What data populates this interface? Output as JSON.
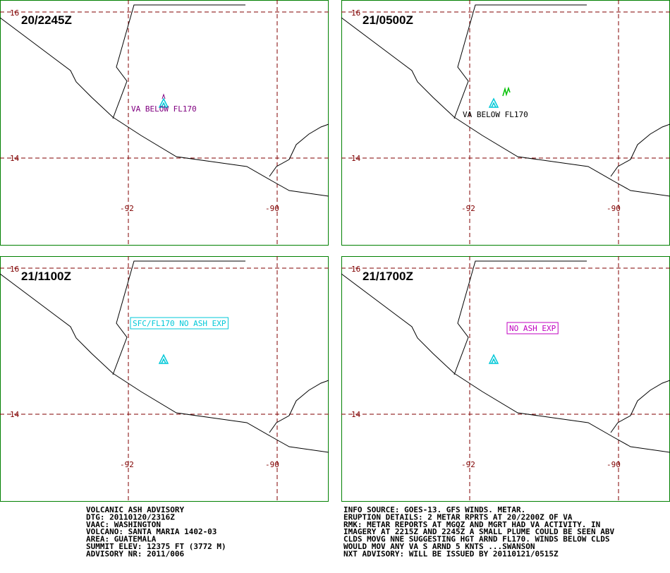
{
  "panels": [
    {
      "time": "20/2245Z",
      "annotation": "VA BELOW FL170"
    },
    {
      "time": "21/0500Z",
      "annotation": "VA BELOW FL170"
    },
    {
      "time": "21/1100Z",
      "annotation": "SFC/FL170 NO ASH EXP"
    },
    {
      "time": "21/1700Z",
      "annotation": "NO ASH EXP"
    }
  ],
  "grid": {
    "lat_labels": [
      "16",
      "14"
    ],
    "lon_labels": [
      "-92",
      "-90"
    ]
  },
  "advisory_left": [
    "VOLCANIC ASH ADVISORY",
    "DTG: 20110120/2316Z",
    "VAAC: WASHINGTON",
    "VOLCANO: SANTA MARIA 1402-03",
    "AREA: GUATEMALA",
    "SUMMIT ELEV: 12375 FT (3772 M)",
    "ADVISORY NR: 2011/006"
  ],
  "advisory_right": [
    "INFO SOURCE: GOES-13. GFS WINDS. METAR.",
    "ERUPTION DETAILS: 2 METAR RPRTS AT 20/2200Z OF VA",
    "RMK: METAR REPORTS AT MGQZ AND MGRT HAD VA ACTIVITY. IN",
    "IMAGERY AT 2215Z AND 2245Z A SMALL PLUME COULD BE SEEN ABV",
    "CLDS MOVG NNE SUGGESTING HGT ARND FL170. WINDS BELOW CLDS",
    "WOULD MOV ANY VA S ARND 5 KNTS ...SWANSON",
    "NXT ADVISORY: WILL BE ISSUED BY 20110121/0515Z"
  ]
}
